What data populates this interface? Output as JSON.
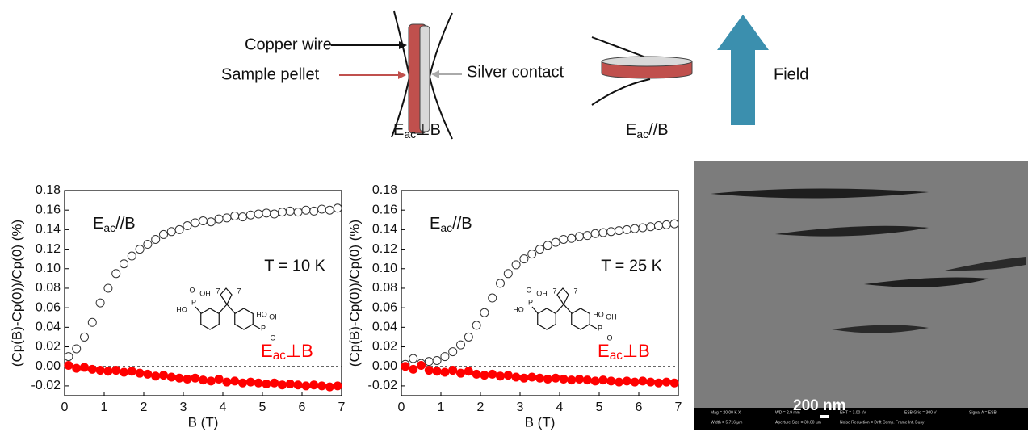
{
  "diagram": {
    "copper_wire": "Copper wire",
    "sample_pellet": "Sample pellet",
    "silver_contact": "Silver contact",
    "field": "Field",
    "label_perp": [
      "E",
      "ac",
      "⊥B"
    ],
    "label_parallel": [
      "E",
      "ac",
      "//B"
    ]
  },
  "molecule_labels": {
    "ho": "HO",
    "oh": "OH",
    "p": "P",
    "o": "O",
    "n": "7"
  },
  "sem_image": {
    "scale_bar": "200 nm",
    "info": [
      "Mag = 20.00 K X",
      "WD = 2.9 mm",
      "EHT = 3.00 kV",
      "ESB Grid = 300 V",
      "Signal A = ESB",
      "Width = 5.716 µm",
      "Aperture Size = 30.00 µm",
      "Noise Reduction = Drift Comp. Frame Int. Busy"
    ]
  },
  "chart_data": [
    {
      "type": "scatter",
      "xlabel": "B (T)",
      "ylabel": "(Cp(B)-Cp(0))/Cp(0) (%)",
      "label_parallel": [
        "E",
        "ac",
        "//B"
      ],
      "label_perp": [
        "E",
        "ac",
        "⊥B"
      ],
      "temperature": "T = 10 K",
      "xlim": [
        0,
        7
      ],
      "ylim": [
        -0.03,
        0.18
      ],
      "xticks": [
        0,
        1,
        2,
        3,
        4,
        5,
        6,
        7
      ],
      "yticks": [
        -0.02,
        {
          "value": 0,
          "label": "0.00"
        },
        0.02,
        0.04,
        0.06,
        0.08,
        {
          "value": 0.1,
          "label": "0.10"
        },
        0.12,
        0.14,
        0.16,
        0.18
      ],
      "reference_line": 0,
      "x": [
        0.1,
        0.3,
        0.5,
        0.7,
        0.9,
        1.1,
        1.3,
        1.5,
        1.7,
        1.9,
        2.1,
        2.3,
        2.5,
        2.7,
        2.9,
        3.1,
        3.3,
        3.5,
        3.7,
        3.9,
        4.1,
        4.3,
        4.5,
        4.7,
        4.9,
        5.1,
        5.3,
        5.5,
        5.7,
        5.9,
        6.1,
        6.3,
        6.5,
        6.7,
        6.9
      ],
      "series": [
        {
          "color": "#333333",
          "marker": "open",
          "values": [
            0.01,
            0.018,
            0.03,
            0.045,
            0.065,
            0.08,
            0.095,
            0.105,
            0.113,
            0.12,
            0.125,
            0.13,
            0.135,
            0.138,
            0.14,
            0.144,
            0.147,
            0.149,
            0.148,
            0.151,
            0.152,
            0.154,
            0.153,
            0.155,
            0.156,
            0.157,
            0.156,
            0.158,
            0.159,
            0.158,
            0.16,
            0.159,
            0.161,
            0.16,
            0.162
          ]
        },
        {
          "color": "#ff0000",
          "marker": "filled",
          "values": [
            0.001,
            -0.002,
            -0.001,
            -0.003,
            -0.004,
            -0.005,
            -0.004,
            -0.006,
            -0.005,
            -0.007,
            -0.008,
            -0.01,
            -0.009,
            -0.011,
            -0.012,
            -0.013,
            -0.012,
            -0.014,
            -0.015,
            -0.013,
            -0.016,
            -0.015,
            -0.017,
            -0.016,
            -0.017,
            -0.018,
            -0.017,
            -0.019,
            -0.018,
            -0.019,
            -0.02,
            -0.019,
            -0.02,
            -0.021,
            -0.02
          ]
        }
      ]
    },
    {
      "type": "scatter",
      "xlabel": "B (T)",
      "ylabel": "(Cp(B)-Cp(0))/Cp(0) (%)",
      "label_parallel": [
        "E",
        "ac",
        "//B"
      ],
      "label_perp": [
        "E",
        "ac",
        "⊥B"
      ],
      "temperature": "T = 25 K",
      "xlim": [
        0,
        7
      ],
      "ylim": [
        -0.03,
        0.18
      ],
      "xticks": [
        0,
        1,
        2,
        3,
        4,
        5,
        6,
        7
      ],
      "yticks": [
        -0.02,
        {
          "value": 0,
          "label": "0.00"
        },
        0.02,
        0.04,
        0.06,
        0.08,
        {
          "value": 0.1,
          "label": "0.10"
        },
        0.12,
        0.14,
        0.16,
        0.18
      ],
      "reference_line": 0,
      "x": [
        0.1,
        0.3,
        0.5,
        0.7,
        0.9,
        1.1,
        1.3,
        1.5,
        1.7,
        1.9,
        2.1,
        2.3,
        2.5,
        2.7,
        2.9,
        3.1,
        3.3,
        3.5,
        3.7,
        3.9,
        4.1,
        4.3,
        4.5,
        4.7,
        4.9,
        5.1,
        5.3,
        5.5,
        5.7,
        5.9,
        6.1,
        6.3,
        6.5,
        6.7,
        6.9
      ],
      "series": [
        {
          "color": "#333333",
          "marker": "open",
          "values": [
            0.002,
            0.008,
            0.003,
            0.005,
            0.006,
            0.01,
            0.015,
            0.022,
            0.03,
            0.042,
            0.055,
            0.07,
            0.085,
            0.095,
            0.104,
            0.11,
            0.115,
            0.12,
            0.124,
            0.127,
            0.13,
            0.131,
            0.133,
            0.134,
            0.136,
            0.137,
            0.138,
            0.139,
            0.14,
            0.141,
            0.142,
            0.143,
            0.144,
            0.145,
            0.146
          ]
        },
        {
          "color": "#ff0000",
          "marker": "filled",
          "values": [
            0,
            -0.003,
            0.001,
            -0.004,
            -0.005,
            -0.006,
            -0.004,
            -0.007,
            -0.005,
            -0.008,
            -0.009,
            -0.008,
            -0.01,
            -0.009,
            -0.011,
            -0.012,
            -0.011,
            -0.012,
            -0.013,
            -0.012,
            -0.013,
            -0.014,
            -0.013,
            -0.014,
            -0.015,
            -0.014,
            -0.015,
            -0.016,
            -0.015,
            -0.016,
            -0.015,
            -0.016,
            -0.017,
            -0.016,
            -0.017
          ]
        }
      ]
    }
  ]
}
